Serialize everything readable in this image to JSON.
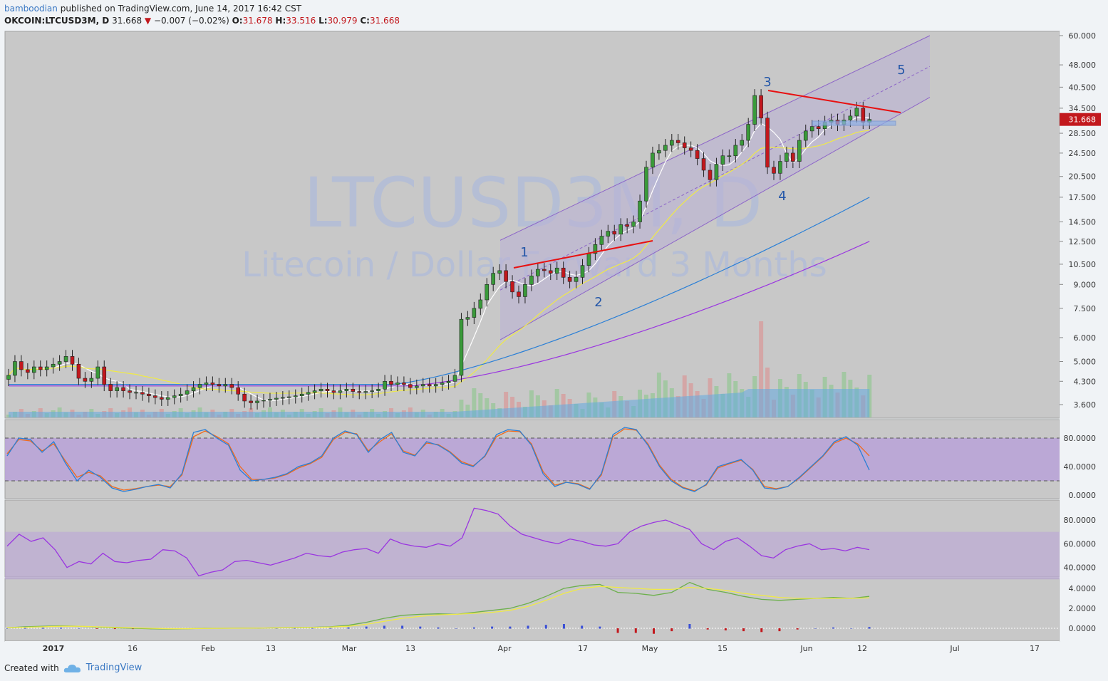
{
  "header": {
    "user": "bamboodian",
    "published": "published on TradingView.com, June 14, 2017 16:42 CST",
    "symbol": "OKCOIN:LTCUSD3M, D",
    "last": "31.668",
    "change": "−0.007 (−0.02%)",
    "o_label": "O:",
    "o": "31.678",
    "h_label": "H:",
    "h": "33.516",
    "l_label": "L:",
    "l": "30.979",
    "c_label": "C:",
    "c": "31.668"
  },
  "watermark": {
    "symbol": "LTCUSD3M, D",
    "description": "Litecoin / Dollar Forward 3 Months"
  },
  "footer": {
    "created_with": "Created with",
    "brand": "TradingView"
  },
  "colors": {
    "background": "#c8c8c8",
    "up": "#3a9a3a",
    "down": "#c2181d",
    "channel": "#b9b0d6",
    "band": "#b9a2d8",
    "blue_line": "#2a7fd6",
    "orange_line": "#f06a1c",
    "purple_line": "#9a36e0",
    "yellow_line": "#f0ea46",
    "trend_red": "#e81010",
    "wave_label": "#2356a8"
  },
  "chart_data": [
    {
      "type": "candlestick",
      "price_axis": [
        "60.000",
        "48.000",
        "40.500",
        "34.500",
        "28.500",
        "24.500",
        "20.500",
        "17.500",
        "14.500",
        "12.500",
        "10.500",
        "9.000",
        "7.500",
        "6.000",
        "5.000",
        "4.300",
        "3.600"
      ],
      "time_axis": [
        "2017",
        "16",
        "Feb",
        "13",
        "Mar",
        "13",
        "Apr",
        "17",
        "May",
        "15",
        "Jun",
        "12",
        "Jul",
        "17"
      ],
      "last_price_label": "31.668",
      "wave_labels": [
        "1",
        "2",
        "3",
        "4",
        "5"
      ],
      "scale": "log",
      "approx_closes": [
        4.5,
        5.0,
        4.7,
        4.6,
        4.8,
        4.7,
        4.8,
        4.9,
        5.0,
        5.2,
        4.9,
        4.4,
        4.3,
        4.4,
        4.8,
        4.2,
        4.0,
        4.1,
        4.0,
        3.95,
        3.95,
        3.9,
        3.85,
        3.8,
        3.75,
        3.8,
        3.85,
        3.9,
        4.0,
        4.1,
        4.2,
        4.25,
        4.2,
        4.15,
        4.2,
        4.1,
        3.9,
        3.7,
        3.65,
        3.7,
        3.72,
        3.75,
        3.78,
        3.8,
        3.82,
        3.85,
        3.9,
        3.95,
        4.0,
        4.05,
        4.0,
        3.95,
        4.0,
        4.05,
        3.98,
        3.95,
        3.98,
        4.0,
        4.05,
        4.3,
        4.2,
        4.25,
        4.2,
        4.1,
        4.15,
        4.2,
        4.15,
        4.2,
        4.25,
        4.3,
        4.5,
        6.9,
        7.0,
        7.5,
        8.0,
        9.0,
        9.8,
        10.0,
        9.2,
        8.5,
        8.2,
        9.0,
        9.6,
        10.1,
        10.0,
        9.8,
        10.2,
        9.5,
        9.2,
        9.5,
        10.4,
        11.4,
        12.2,
        13.0,
        13.5,
        13.2,
        14.2,
        14.0,
        14.5,
        17.0,
        22.0,
        24.5,
        25.0,
        26.0,
        27.0,
        26.5,
        25.5,
        25.0,
        23.5,
        21.5,
        20.0,
        22.5,
        24.0,
        24.0,
        26.0,
        27.0,
        30.5,
        38.0,
        32.0,
        22.0,
        21.0,
        23.0,
        24.5,
        23.0,
        27.0,
        29.0,
        30.0,
        29.5,
        31.0,
        31.5,
        30.5,
        31.5,
        32.5,
        34.5,
        31.0,
        31.67
      ],
      "ma_white_comment": "short moving average follows price",
      "ma_yellow_comment": "medium moving average",
      "ma_blue_comment": "long moving average",
      "ma_purple_comment": "longest moving average"
    },
    {
      "type": "line",
      "name": "Stochastic",
      "y_axis": [
        "80.0000",
        "40.0000",
        "0.0000"
      ],
      "band": [
        20,
        80
      ],
      "k_approx": [
        55,
        80,
        78,
        60,
        75,
        45,
        20,
        35,
        25,
        10,
        5,
        8,
        12,
        15,
        10,
        30,
        88,
        92,
        80,
        70,
        35,
        20,
        22,
        25,
        30,
        40,
        45,
        55,
        80,
        90,
        85,
        60,
        78,
        88,
        60,
        55,
        75,
        70,
        60,
        45,
        40,
        55,
        85,
        92,
        90,
        70,
        30,
        12,
        18,
        15,
        8,
        30,
        85,
        95,
        92,
        70,
        40,
        20,
        10,
        5,
        15,
        40,
        45,
        50,
        35,
        10,
        8,
        12,
        25,
        40,
        55,
        75,
        82,
        70,
        35
      ],
      "d_approx": [
        58,
        78,
        76,
        62,
        72,
        48,
        25,
        32,
        27,
        12,
        7,
        9,
        12,
        14,
        12,
        28,
        82,
        90,
        82,
        72,
        40,
        22,
        22,
        24,
        29,
        38,
        44,
        53,
        78,
        88,
        86,
        62,
        75,
        86,
        62,
        56,
        73,
        71,
        61,
        47,
        41,
        54,
        82,
        90,
        89,
        72,
        33,
        14,
        18,
        16,
        9,
        28,
        82,
        93,
        91,
        72,
        42,
        22,
        11,
        6,
        14,
        38,
        44,
        49,
        36,
        12,
        9,
        12,
        24,
        39,
        54,
        73,
        80,
        72,
        55
      ]
    },
    {
      "type": "line",
      "name": "RSI",
      "y_axis": [
        "80.0000",
        "60.0000",
        "40.0000"
      ],
      "band": [
        30,
        70
      ],
      "values_approx": [
        58,
        68,
        62,
        65,
        55,
        40,
        45,
        43,
        52,
        45,
        44,
        46,
        47,
        55,
        54,
        48,
        33,
        36,
        38,
        45,
        46,
        44,
        42,
        45,
        48,
        52,
        50,
        49,
        53,
        55,
        56,
        52,
        64,
        60,
        58,
        57,
        60,
        58,
        65,
        90,
        88,
        85,
        75,
        68,
        65,
        62,
        60,
        64,
        62,
        59,
        58,
        60,
        70,
        75,
        78,
        80,
        76,
        72,
        60,
        55,
        62,
        65,
        58,
        50,
        48,
        55,
        58,
        60,
        55,
        56,
        54,
        57,
        55
      ]
    },
    {
      "type": "line",
      "name": "MACD",
      "y_axis": [
        "4.0000",
        "2.0000",
        "0.0000"
      ],
      "macd_approx": [
        0.05,
        0.15,
        0.2,
        0.25,
        0.2,
        0.12,
        0.05,
        0.0,
        -0.05,
        -0.08,
        -0.05,
        0.0,
        0.0,
        0.02,
        0.02,
        0.05,
        0.08,
        0.1,
        0.15,
        0.3,
        0.6,
        1.0,
        1.3,
        1.4,
        1.45,
        1.4,
        1.6,
        1.8,
        2.0,
        2.5,
        3.2,
        4.0,
        4.3,
        4.4,
        3.6,
        3.5,
        3.3,
        3.6,
        4.6,
        3.9,
        3.6,
        3.2,
        2.9,
        2.8,
        2.9,
        3.0,
        3.1,
        3.0,
        3.2
      ],
      "signal_approx": [
        0.05,
        0.1,
        0.15,
        0.2,
        0.2,
        0.15,
        0.1,
        0.05,
        0.0,
        -0.04,
        -0.04,
        -0.02,
        0.0,
        0.01,
        0.02,
        0.04,
        0.06,
        0.08,
        0.12,
        0.2,
        0.4,
        0.7,
        1.0,
        1.2,
        1.35,
        1.4,
        1.5,
        1.6,
        1.8,
        2.2,
        2.8,
        3.5,
        4.0,
        4.2,
        4.1,
        4.0,
        3.9,
        3.9,
        4.1,
        4.0,
        3.8,
        3.5,
        3.3,
        3.1,
        3.0,
        3.0,
        3.0,
        3.0,
        3.05
      ]
    }
  ]
}
